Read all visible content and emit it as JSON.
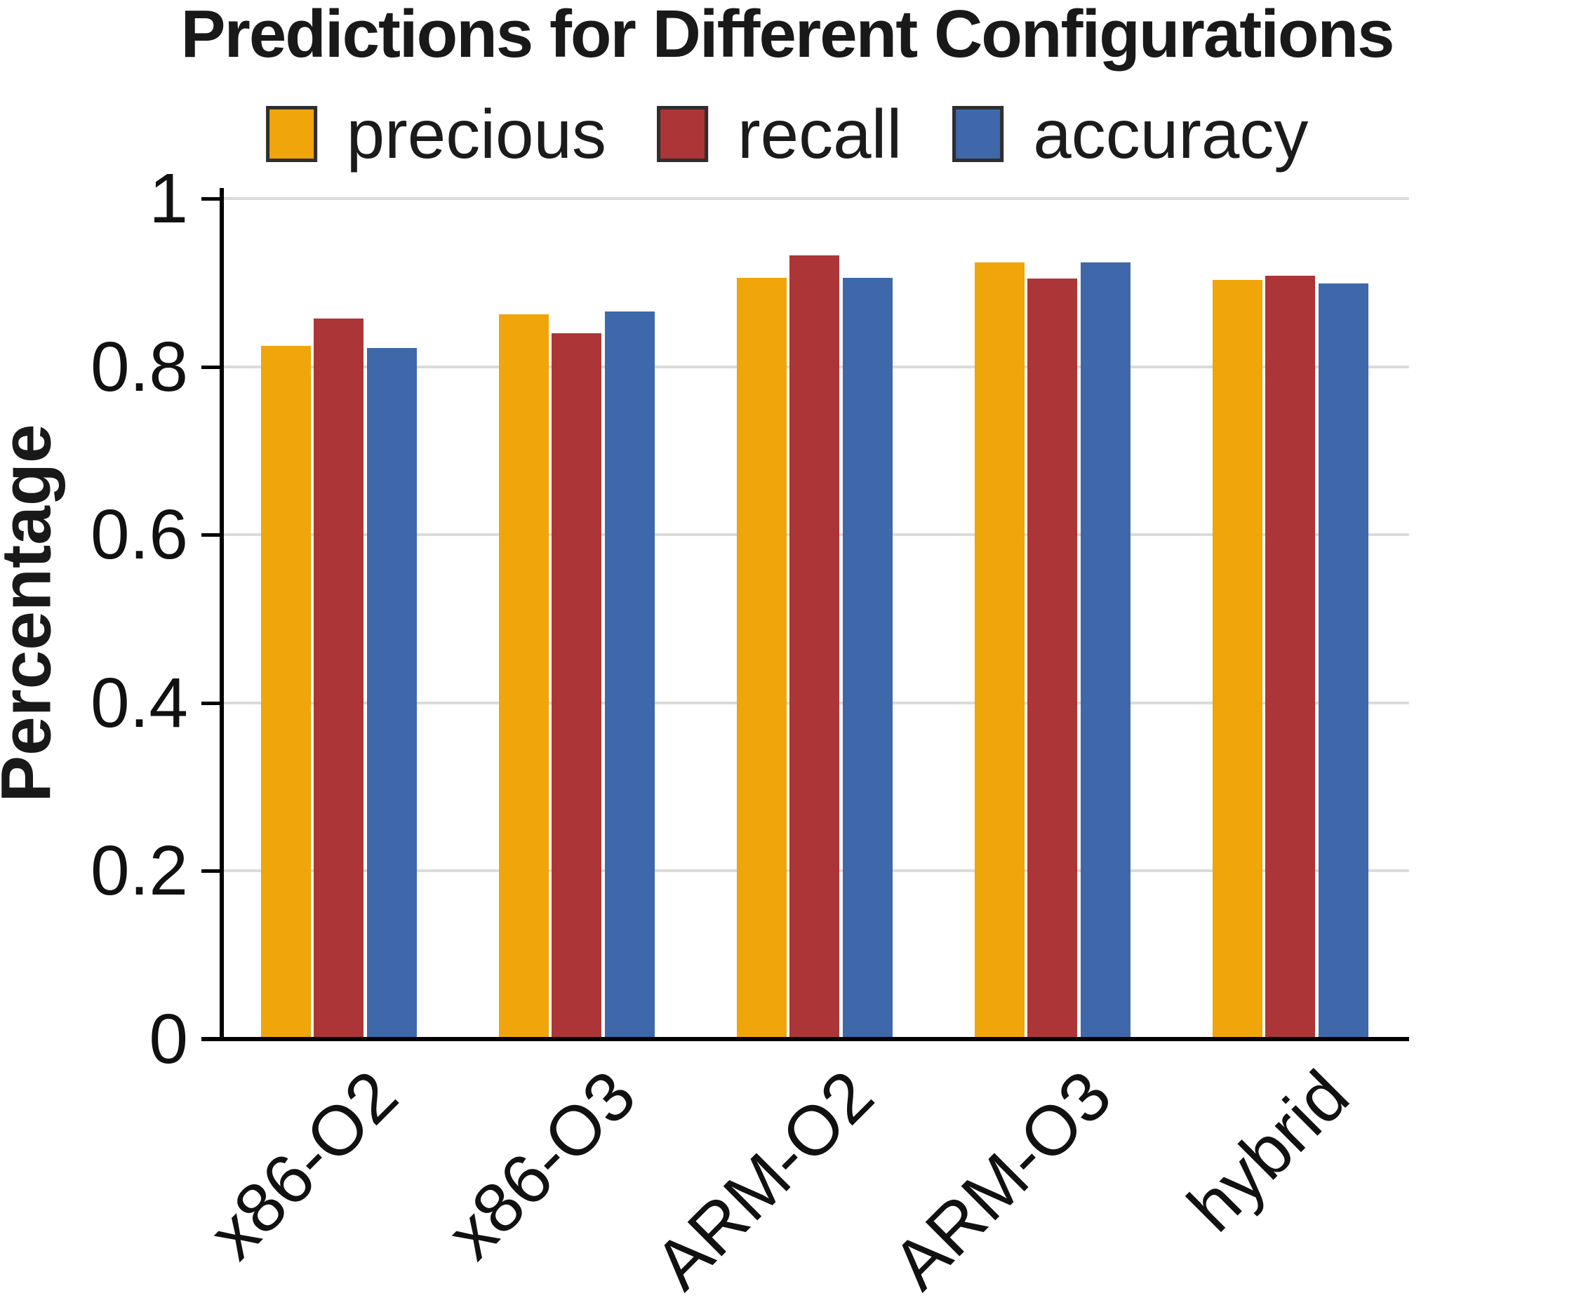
{
  "chart_data": {
    "type": "bar",
    "title": "Predictions for Different Configurations",
    "ylabel": "Percentage",
    "xlabel": "",
    "categories": [
      "x86-O2",
      "x86-O3",
      "ARM-O2",
      "ARM-O3",
      "hybrid"
    ],
    "series": [
      {
        "name": "precious",
        "color": "#F0A50A",
        "values": [
          0.825,
          0.862,
          0.906,
          0.924,
          0.903
        ]
      },
      {
        "name": "recall",
        "color": "#AC3537",
        "values": [
          0.857,
          0.84,
          0.932,
          0.905,
          0.908
        ]
      },
      {
        "name": "accuracy",
        "color": "#3E68A9",
        "values": [
          0.822,
          0.866,
          0.906,
          0.924,
          0.899
        ]
      }
    ],
    "ylim": [
      0,
      1
    ],
    "yticks": [
      0,
      0.2,
      0.4,
      0.6,
      0.8,
      1
    ],
    "ytick_labels": [
      "0",
      "0.2",
      "0.4",
      "0.6",
      "0.8",
      "1"
    ],
    "grid": true,
    "legend_position": "top",
    "legend_swatch_border": "#2E2E2E",
    "axis_color": "#000000",
    "grid_color": "#DBDBDB"
  }
}
